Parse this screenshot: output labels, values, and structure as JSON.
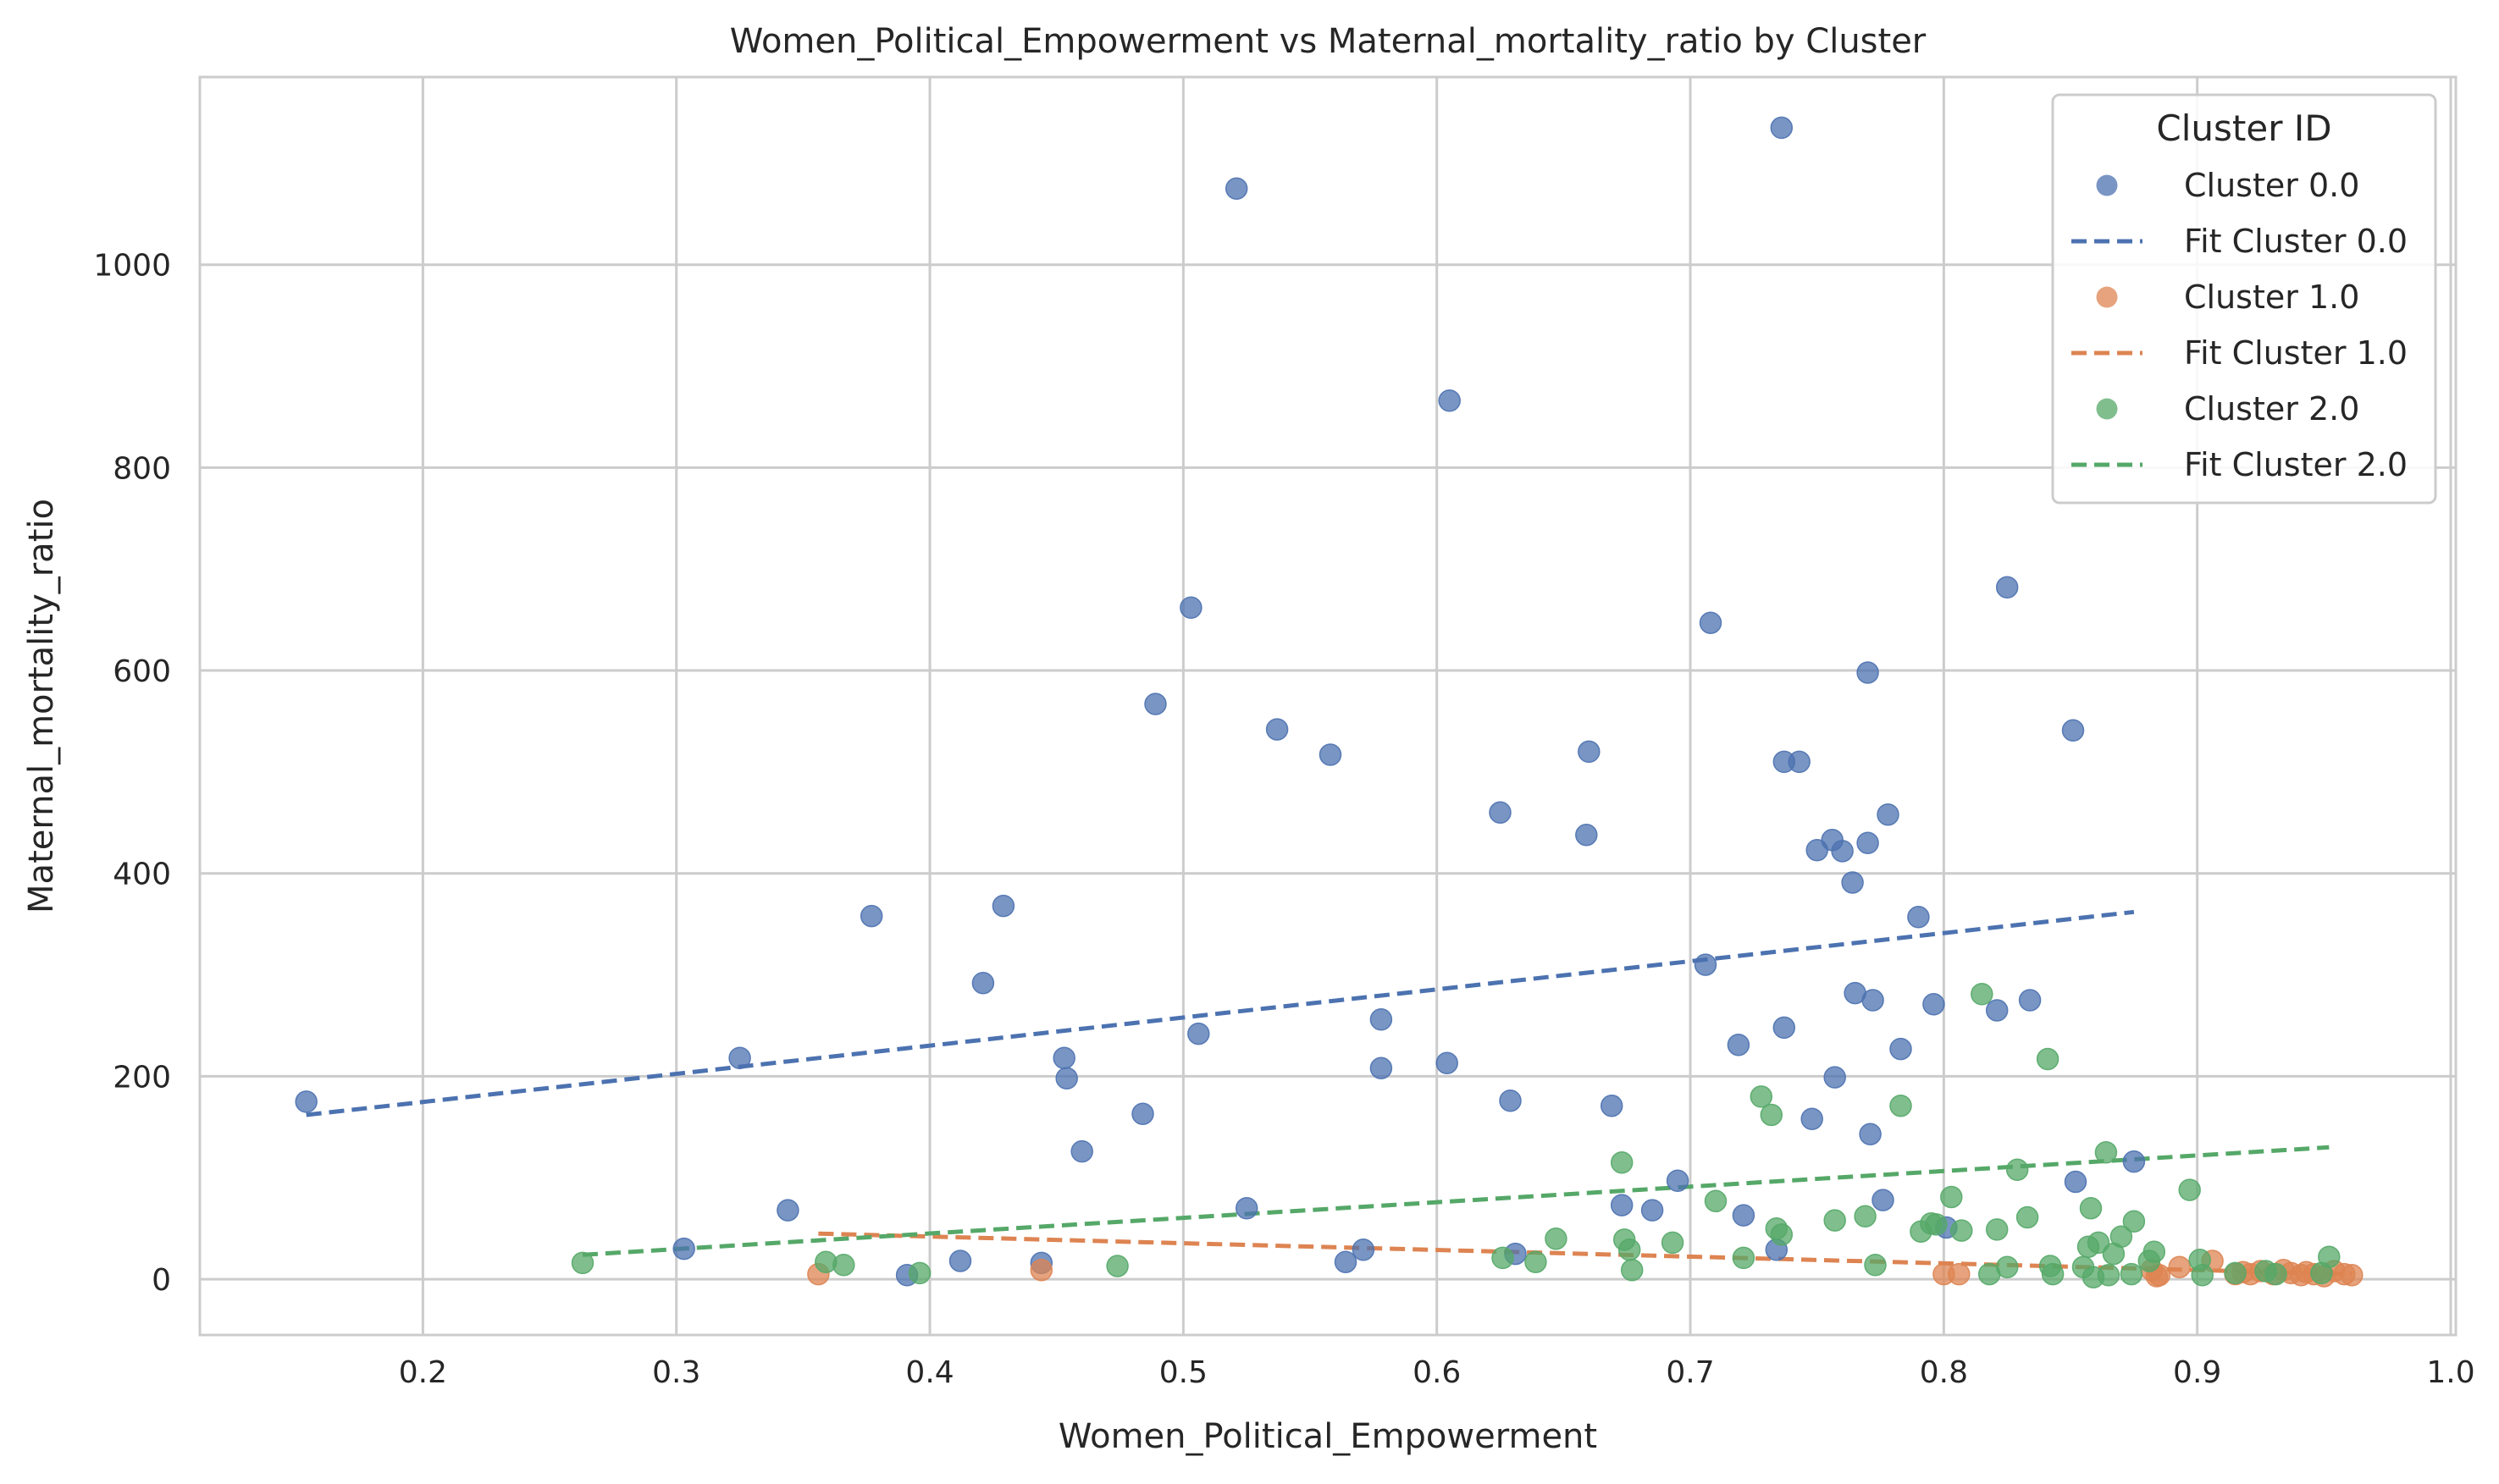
{
  "chart_data": {
    "type": "scatter",
    "title": "Women_Political_Empowerment vs Maternal_mortality_ratio by Cluster",
    "xlabel": "Women_Political_Empowerment",
    "ylabel": "Maternal_mortality_ratio",
    "xlim": [
      0.112,
      1.002
    ],
    "ylim": [
      -55,
      1185
    ],
    "xticks": [
      0.2,
      0.3,
      0.4,
      0.5,
      0.6,
      0.7,
      0.8,
      0.9,
      1.0
    ],
    "xtick_labels": [
      "0.2",
      "0.3",
      "0.4",
      "0.5",
      "0.6",
      "0.7",
      "0.8",
      "0.9",
      "1.0"
    ],
    "yticks": [
      0,
      200,
      400,
      600,
      800,
      1000
    ],
    "ytick_labels": [
      "0",
      "200",
      "400",
      "600",
      "800",
      "1000"
    ],
    "grid": true,
    "legend": {
      "title": "Cluster ID",
      "position": "top-right",
      "entries": [
        "Cluster 0.0",
        "Fit Cluster 0.0",
        "Cluster 1.0",
        "Fit Cluster 1.0",
        "Cluster 2.0",
        "Fit Cluster 2.0"
      ]
    },
    "series": [
      {
        "name": "Cluster 0.0",
        "color": "#4c72b0",
        "points": [
          [
            0.154,
            175
          ],
          [
            0.303,
            30
          ],
          [
            0.325,
            218
          ],
          [
            0.344,
            68
          ],
          [
            0.377,
            358
          ],
          [
            0.391,
            4
          ],
          [
            0.412,
            18
          ],
          [
            0.421,
            292
          ],
          [
            0.429,
            368
          ],
          [
            0.444,
            16
          ],
          [
            0.453,
            218
          ],
          [
            0.454,
            198
          ],
          [
            0.46,
            126
          ],
          [
            0.484,
            163
          ],
          [
            0.489,
            567
          ],
          [
            0.503,
            662
          ],
          [
            0.506,
            242
          ],
          [
            0.521,
            1075
          ],
          [
            0.525,
            70
          ],
          [
            0.537,
            542
          ],
          [
            0.558,
            517
          ],
          [
            0.564,
            17
          ],
          [
            0.571,
            29
          ],
          [
            0.578,
            256
          ],
          [
            0.578,
            208
          ],
          [
            0.604,
            213
          ],
          [
            0.605,
            866
          ],
          [
            0.625,
            460
          ],
          [
            0.629,
            176
          ],
          [
            0.631,
            25
          ],
          [
            0.659,
            438
          ],
          [
            0.66,
            520
          ],
          [
            0.669,
            171
          ],
          [
            0.673,
            73
          ],
          [
            0.685,
            68
          ],
          [
            0.695,
            97
          ],
          [
            0.706,
            310
          ],
          [
            0.708,
            647
          ],
          [
            0.719,
            231
          ],
          [
            0.721,
            63
          ],
          [
            0.734,
            29
          ],
          [
            0.736,
            1135
          ],
          [
            0.737,
            510
          ],
          [
            0.737,
            248
          ],
          [
            0.743,
            510
          ],
          [
            0.748,
            158
          ],
          [
            0.75,
            423
          ],
          [
            0.756,
            433
          ],
          [
            0.757,
            199
          ],
          [
            0.76,
            422
          ],
          [
            0.764,
            391
          ],
          [
            0.765,
            282
          ],
          [
            0.77,
            430
          ],
          [
            0.77,
            598
          ],
          [
            0.771,
            143
          ],
          [
            0.772,
            275
          ],
          [
            0.776,
            78
          ],
          [
            0.778,
            458
          ],
          [
            0.783,
            227
          ],
          [
            0.79,
            357
          ],
          [
            0.796,
            271
          ],
          [
            0.801,
            51
          ],
          [
            0.821,
            265
          ],
          [
            0.825,
            682
          ],
          [
            0.834,
            275
          ],
          [
            0.851,
            541
          ],
          [
            0.852,
            96
          ],
          [
            0.875,
            116
          ]
        ],
        "fit": {
          "name": "Fit Cluster 0.0",
          "x": [
            0.154,
            0.875
          ],
          "y": [
            162,
            362
          ]
        }
      },
      {
        "name": "Cluster 1.0",
        "color": "#dd8452",
        "points": [
          [
            0.356,
            5
          ],
          [
            0.444,
            9
          ],
          [
            0.8,
            5
          ],
          [
            0.806,
            5
          ],
          [
            0.882,
            9
          ],
          [
            0.884,
            3
          ],
          [
            0.885,
            4
          ],
          [
            0.893,
            12
          ],
          [
            0.906,
            18
          ],
          [
            0.915,
            5
          ],
          [
            0.918,
            7
          ],
          [
            0.921,
            5
          ],
          [
            0.925,
            8
          ],
          [
            0.93,
            5
          ],
          [
            0.934,
            9
          ],
          [
            0.937,
            6
          ],
          [
            0.941,
            4
          ],
          [
            0.943,
            7
          ],
          [
            0.946,
            5
          ],
          [
            0.95,
            3
          ],
          [
            0.954,
            8
          ],
          [
            0.958,
            5
          ],
          [
            0.961,
            4
          ]
        ],
        "fit": {
          "name": "Fit Cluster 1.0",
          "x": [
            0.356,
            0.961
          ],
          "y": [
            45,
            5
          ]
        }
      },
      {
        "name": "Cluster 2.0",
        "color": "#55a868",
        "points": [
          [
            0.263,
            16
          ],
          [
            0.359,
            17
          ],
          [
            0.366,
            14
          ],
          [
            0.396,
            6
          ],
          [
            0.474,
            13
          ],
          [
            0.626,
            21
          ],
          [
            0.639,
            17
          ],
          [
            0.647,
            40
          ],
          [
            0.673,
            115
          ],
          [
            0.674,
            39
          ],
          [
            0.676,
            29
          ],
          [
            0.677,
            9
          ],
          [
            0.693,
            36
          ],
          [
            0.71,
            77
          ],
          [
            0.721,
            21
          ],
          [
            0.728,
            180
          ],
          [
            0.732,
            162
          ],
          [
            0.734,
            50
          ],
          [
            0.736,
            44
          ],
          [
            0.757,
            58
          ],
          [
            0.769,
            62
          ],
          [
            0.773,
            14
          ],
          [
            0.783,
            171
          ],
          [
            0.791,
            47
          ],
          [
            0.795,
            55
          ],
          [
            0.797,
            54
          ],
          [
            0.803,
            81
          ],
          [
            0.807,
            48
          ],
          [
            0.815,
            281
          ],
          [
            0.818,
            5
          ],
          [
            0.821,
            49
          ],
          [
            0.825,
            12
          ],
          [
            0.829,
            108
          ],
          [
            0.833,
            61
          ],
          [
            0.841,
            217
          ],
          [
            0.842,
            13
          ],
          [
            0.843,
            5
          ],
          [
            0.855,
            12
          ],
          [
            0.857,
            32
          ],
          [
            0.858,
            70
          ],
          [
            0.859,
            2
          ],
          [
            0.861,
            36
          ],
          [
            0.864,
            125
          ],
          [
            0.865,
            4
          ],
          [
            0.867,
            25
          ],
          [
            0.87,
            42
          ],
          [
            0.874,
            5
          ],
          [
            0.875,
            57
          ],
          [
            0.881,
            18
          ],
          [
            0.883,
            27
          ],
          [
            0.897,
            88
          ],
          [
            0.901,
            19
          ],
          [
            0.902,
            4
          ],
          [
            0.915,
            6
          ],
          [
            0.927,
            8
          ],
          [
            0.931,
            5
          ],
          [
            0.949,
            6
          ],
          [
            0.952,
            22
          ]
        ],
        "fit": {
          "name": "Fit Cluster 2.0",
          "x": [
            0.263,
            0.952
          ],
          "y": [
            24,
            130
          ]
        }
      }
    ]
  }
}
